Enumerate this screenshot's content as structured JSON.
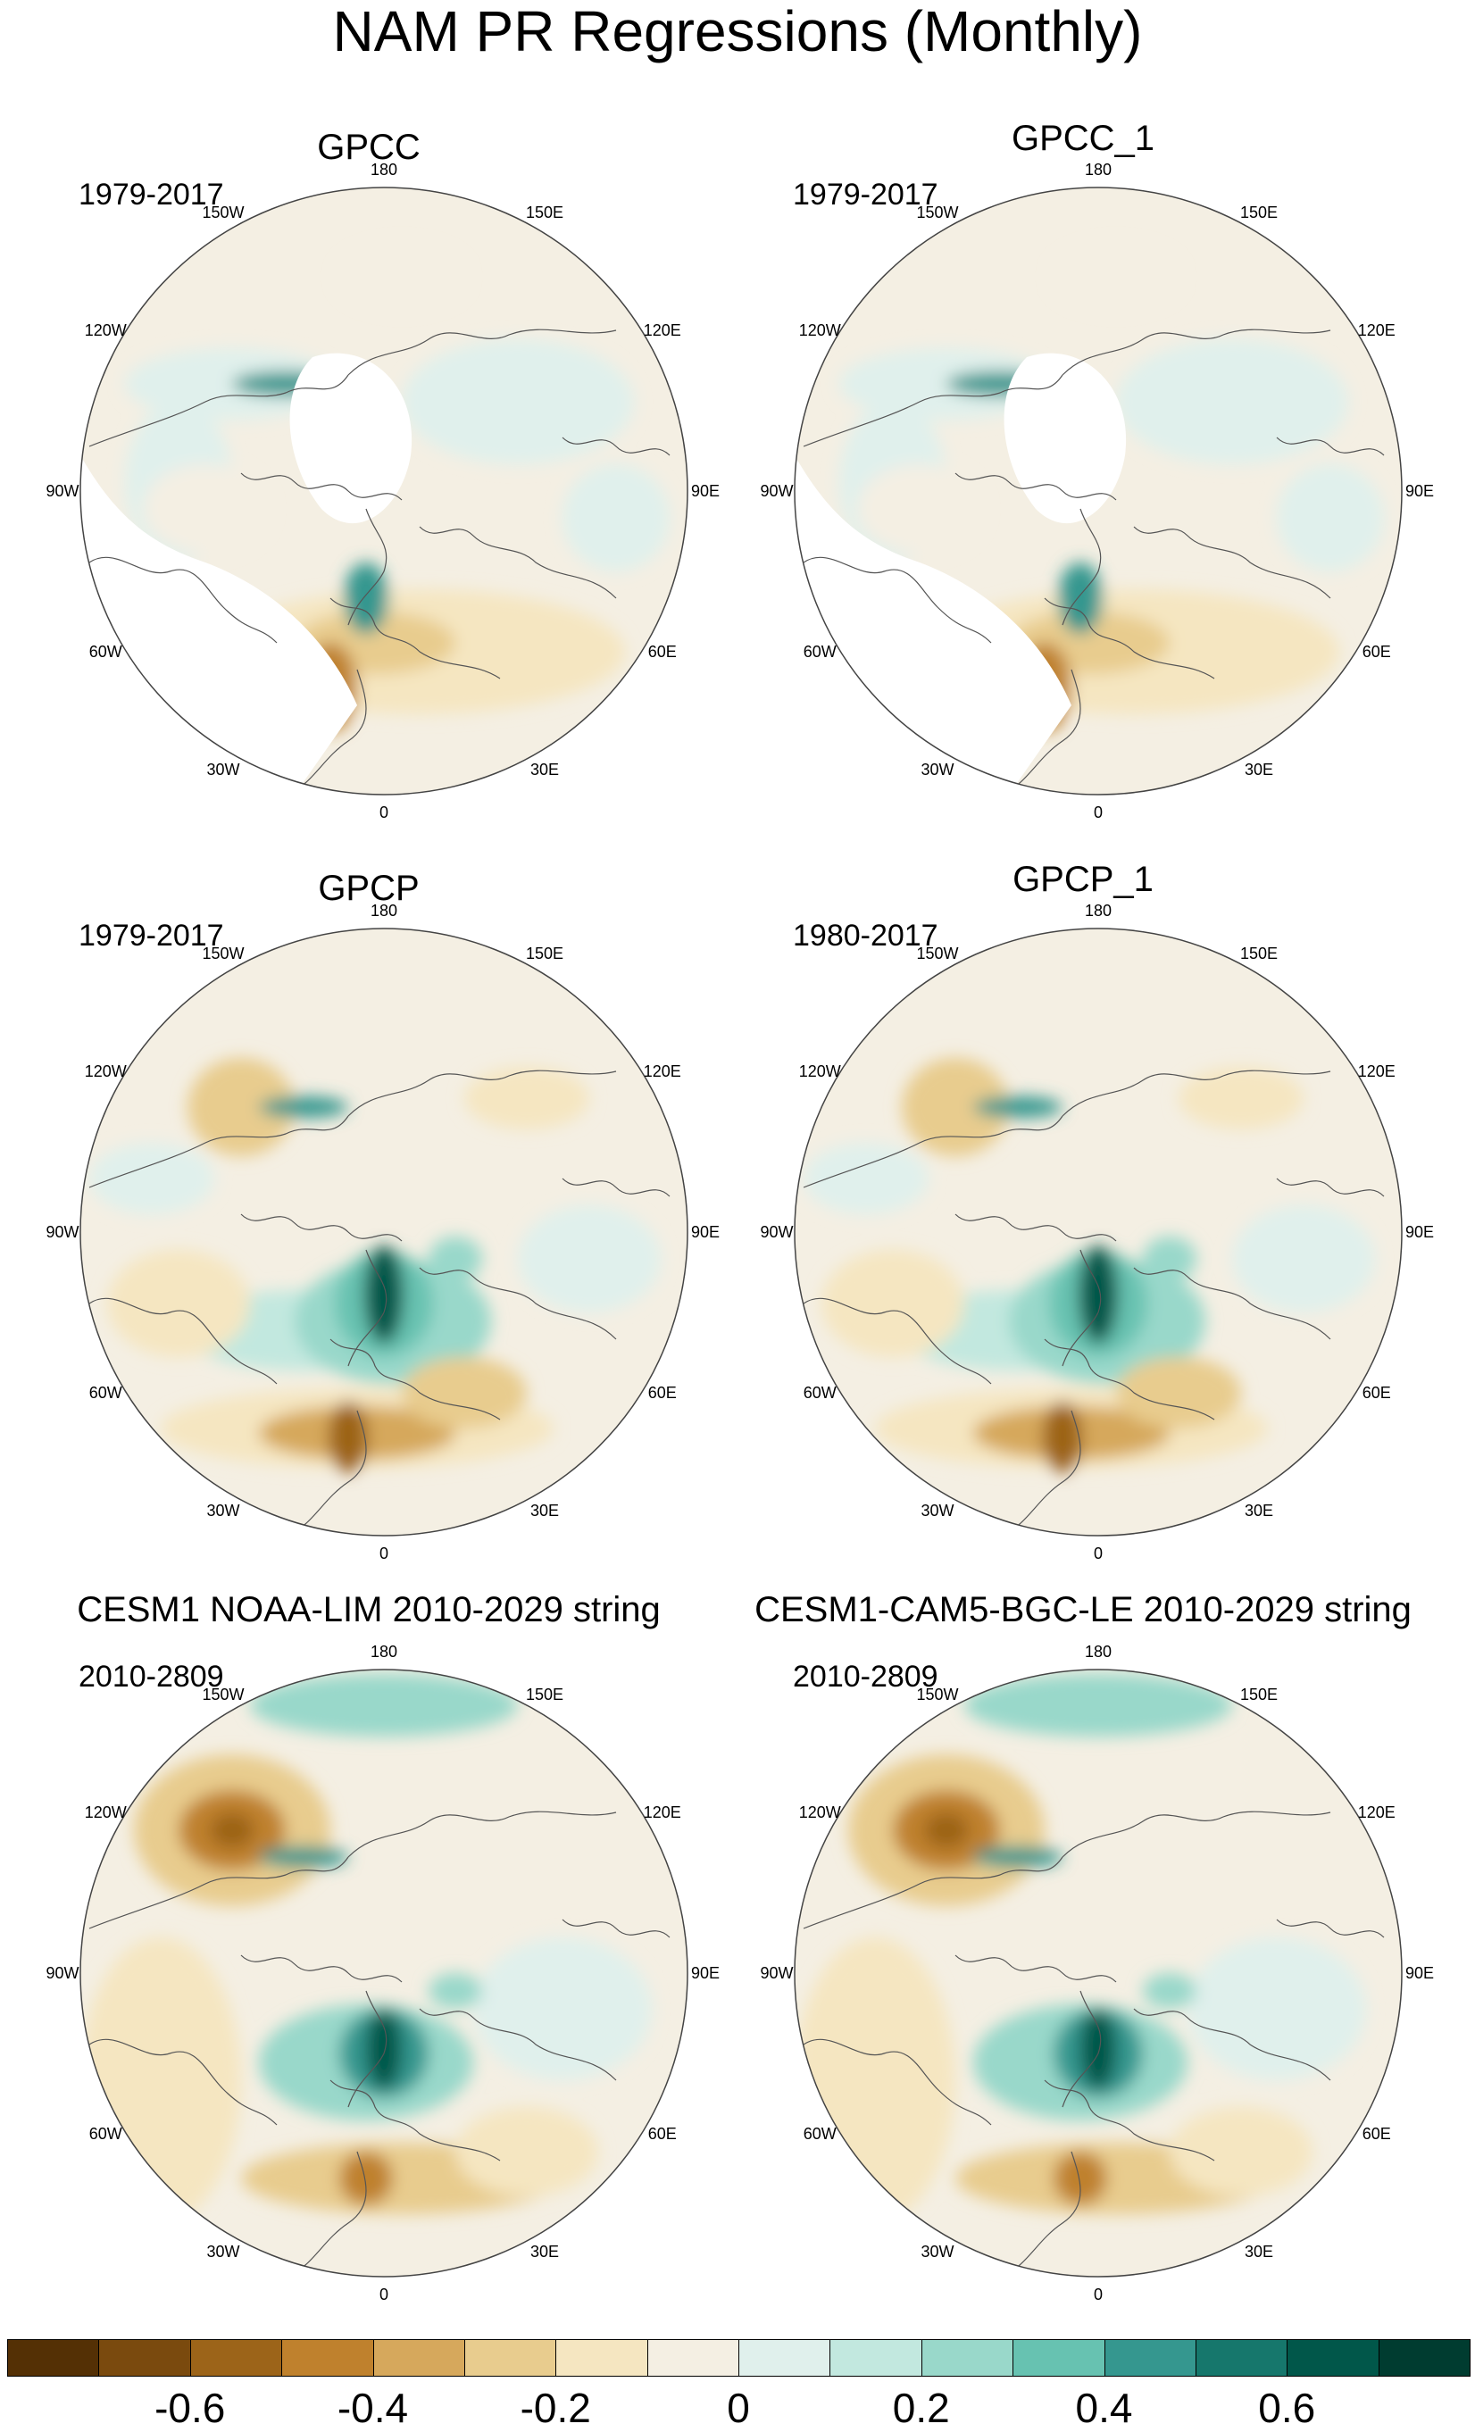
{
  "figure": {
    "title": "NAM PR Regressions (Monthly)"
  },
  "panels": [
    {
      "title": "GPCC",
      "years": "1979-2017",
      "field": "gpcc"
    },
    {
      "title": "GPCC_1",
      "years": "1979-2017",
      "field": "gpcc"
    },
    {
      "title": "GPCP",
      "years": "1979-2017",
      "field": "gpcp"
    },
    {
      "title": "GPCP_1",
      "years": "1980-2017",
      "field": "gpcp"
    },
    {
      "title": "CESM1 NOAA-LIM 2010-2029 string",
      "years": "2010-2809",
      "field": "cesm"
    },
    {
      "title": "CESM1-CAM5-BGC-LE 2010-2029 string",
      "years": "2010-2809",
      "field": "cesm"
    }
  ],
  "longitude_labels": [
    "180",
    "150E",
    "120E",
    "90E",
    "60E",
    "30E",
    "0",
    "30W",
    "60W",
    "90W",
    "120W",
    "150W"
  ],
  "colorbar": {
    "colors": [
      "#543005",
      "#7a4a0e",
      "#9c6419",
      "#bf812d",
      "#d6a85c",
      "#e8cc8e",
      "#f5e6c1",
      "#f4efe3",
      "#e0f0ec",
      "#c2e8df",
      "#99d8ca",
      "#67c2b1",
      "#35978f",
      "#16776c",
      "#01574a",
      "#003c30"
    ],
    "tick_labels": [
      "-0.6",
      "-0.4",
      "-0.2",
      "0",
      "0.2",
      "0.4",
      "0.6"
    ],
    "tick_values": [
      -0.6,
      -0.4,
      -0.2,
      0,
      0.2,
      0.4,
      0.6
    ]
  }
}
